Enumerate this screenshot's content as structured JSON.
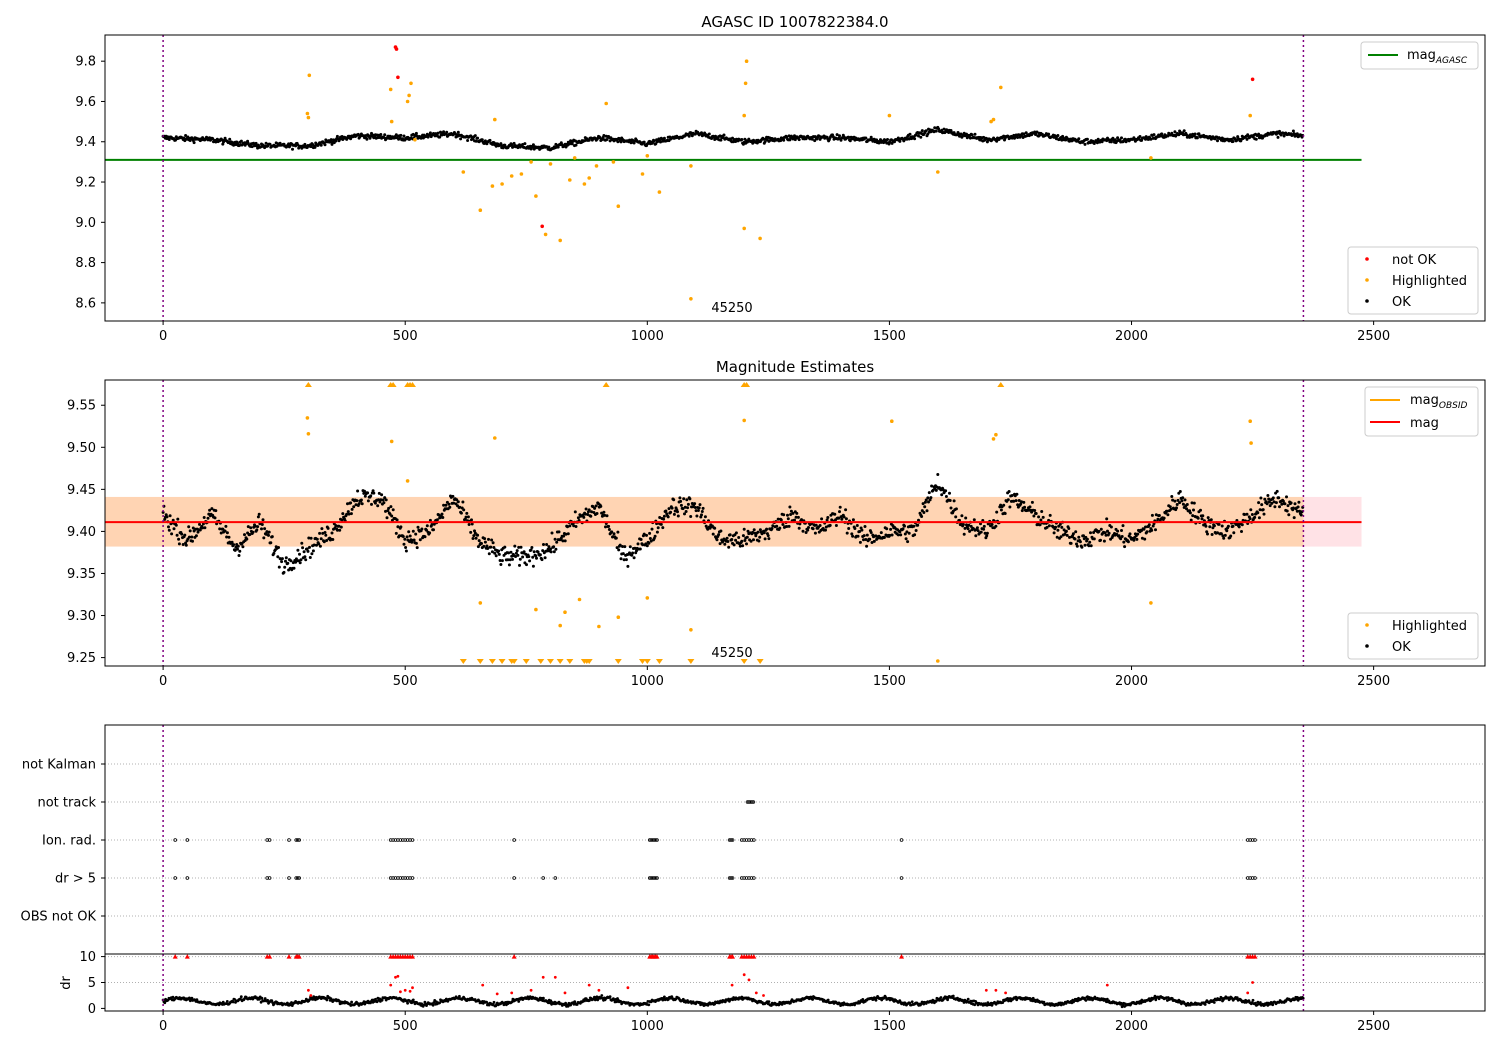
{
  "chart_data": [
    {
      "type": "scatter",
      "title": "AGASC ID 1007822384.0",
      "xlim": [
        -120,
        2730
      ],
      "ylim": [
        8.51,
        9.93
      ],
      "x_ticks": [
        0,
        500,
        1000,
        1500,
        2000,
        2500
      ],
      "y_ticks": [
        8.6,
        8.8,
        9.0,
        9.2,
        9.4,
        9.6,
        9.8
      ],
      "y_tick_labels": [
        "8.6",
        "8.8",
        "9.0",
        "9.2",
        "9.4",
        "9.6",
        "9.8"
      ],
      "vlines": [
        0,
        2355
      ],
      "hline": {
        "y": 9.31,
        "x_range": [
          -120,
          2475
        ],
        "color": "#008000"
      },
      "obsid_label": {
        "text": "45250",
        "x": 1180,
        "y": 8.58
      },
      "colors": {
        "ok": "#000000",
        "highlighted": "#ffa500",
        "not_ok": "#ff0000"
      },
      "baseline": {
        "x_start": 0,
        "x_end": 2355,
        "anchors": [
          [
            0,
            9.42
          ],
          [
            100,
            9.41
          ],
          [
            200,
            9.38
          ],
          [
            300,
            9.38
          ],
          [
            400,
            9.43
          ],
          [
            500,
            9.42
          ],
          [
            600,
            9.44
          ],
          [
            700,
            9.38
          ],
          [
            800,
            9.37
          ],
          [
            900,
            9.42
          ],
          [
            1000,
            9.39
          ],
          [
            1100,
            9.44
          ],
          [
            1200,
            9.4
          ],
          [
            1300,
            9.42
          ],
          [
            1400,
            9.42
          ],
          [
            1500,
            9.4
          ],
          [
            1600,
            9.46
          ],
          [
            1700,
            9.41
          ],
          [
            1800,
            9.44
          ],
          [
            1900,
            9.4
          ],
          [
            2000,
            9.41
          ],
          [
            2100,
            9.44
          ],
          [
            2200,
            9.41
          ],
          [
            2300,
            9.44
          ],
          [
            2355,
            9.43
          ]
        ]
      },
      "series": [
        {
          "name": "not OK",
          "color": "#ff0000",
          "points": [
            [
              480,
              9.87
            ],
            [
              482,
              9.86
            ],
            [
              485,
              9.72
            ],
            [
              783,
              8.98
            ],
            [
              2250,
              9.71
            ]
          ]
        },
        {
          "name": "Highlighted",
          "color": "#ffa500",
          "points": [
            [
              298,
              9.54
            ],
            [
              300,
              9.52
            ],
            [
              302,
              9.73
            ],
            [
              470,
              9.66
            ],
            [
              472,
              9.5
            ],
            [
              505,
              9.6
            ],
            [
              508,
              9.63
            ],
            [
              512,
              9.69
            ],
            [
              520,
              9.41
            ],
            [
              620,
              9.25
            ],
            [
              655,
              9.06
            ],
            [
              680,
              9.18
            ],
            [
              685,
              9.51
            ],
            [
              700,
              9.19
            ],
            [
              720,
              9.23
            ],
            [
              740,
              9.24
            ],
            [
              760,
              9.3
            ],
            [
              770,
              9.13
            ],
            [
              790,
              8.94
            ],
            [
              800,
              9.29
            ],
            [
              820,
              8.91
            ],
            [
              840,
              9.21
            ],
            [
              850,
              9.32
            ],
            [
              870,
              9.19
            ],
            [
              880,
              9.22
            ],
            [
              895,
              9.28
            ],
            [
              915,
              9.59
            ],
            [
              930,
              9.3
            ],
            [
              940,
              9.08
            ],
            [
              990,
              9.24
            ],
            [
              1000,
              9.33
            ],
            [
              1025,
              9.15
            ],
            [
              1090,
              9.28
            ],
            [
              1090,
              8.62
            ],
            [
              1200,
              9.53
            ],
            [
              1203,
              9.69
            ],
            [
              1205,
              9.8
            ],
            [
              1200,
              8.97
            ],
            [
              1233,
              8.92
            ],
            [
              1500,
              9.53
            ],
            [
              1600,
              9.25
            ],
            [
              1710,
              9.5
            ],
            [
              1715,
              9.51
            ],
            [
              1730,
              9.67
            ],
            [
              2040,
              9.32
            ],
            [
              2245,
              9.53
            ]
          ]
        },
        {
          "name": "OK",
          "color": "#000000"
        }
      ],
      "legends": [
        {
          "position": "upper right",
          "entries": [
            {
              "label": "mag",
              "subscript": "AGASC",
              "color": "#008000",
              "kind": "line"
            }
          ]
        },
        {
          "position": "lower right",
          "entries": [
            {
              "label": "not OK",
              "color": "#ff0000",
              "kind": "dot"
            },
            {
              "label": "Highlighted",
              "color": "#ffa500",
              "kind": "dot"
            },
            {
              "label": "OK",
              "color": "#000000",
              "kind": "dot"
            }
          ]
        }
      ]
    },
    {
      "type": "scatter",
      "title": "Magnitude Estimates",
      "xlim": [
        -120,
        2730
      ],
      "ylim": [
        9.24,
        9.58
      ],
      "x_ticks": [
        0,
        500,
        1000,
        1500,
        2000,
        2500
      ],
      "y_ticks": [
        9.25,
        9.3,
        9.35,
        9.4,
        9.45,
        9.5,
        9.55
      ],
      "y_tick_labels": [
        "9.25",
        "9.30",
        "9.35",
        "9.40",
        "9.45",
        "9.50",
        "9.55"
      ],
      "vlines": [
        0,
        2355
      ],
      "hline": {
        "y": 9.411,
        "x_range": [
          -120,
          2475
        ],
        "color": "#ff0000"
      },
      "bands": [
        {
          "y0": 9.382,
          "y1": 9.441,
          "x_range": [
            -120,
            2475
          ],
          "color": "#ffb6c1",
          "opacity": 0.4
        },
        {
          "y0": 9.382,
          "y1": 9.441,
          "x_range": [
            -120,
            2355
          ],
          "color": "#ffa500",
          "opacity": 0.22
        }
      ],
      "obsid_label": {
        "text": "45250",
        "x": 1180,
        "y": 9.254
      },
      "baseline": {
        "x_start": 0,
        "x_end": 2355,
        "anchors": [
          [
            0,
            9.42
          ],
          [
            50,
            9.39
          ],
          [
            100,
            9.42
          ],
          [
            150,
            9.38
          ],
          [
            200,
            9.41
          ],
          [
            250,
            9.36
          ],
          [
            300,
            9.38
          ],
          [
            350,
            9.4
          ],
          [
            400,
            9.44
          ],
          [
            450,
            9.44
          ],
          [
            500,
            9.39
          ],
          [
            550,
            9.4
          ],
          [
            600,
            9.44
          ],
          [
            650,
            9.39
          ],
          [
            700,
            9.37
          ],
          [
            750,
            9.37
          ],
          [
            800,
            9.38
          ],
          [
            850,
            9.41
          ],
          [
            900,
            9.43
          ],
          [
            950,
            9.37
          ],
          [
            1000,
            9.39
          ],
          [
            1050,
            9.43
          ],
          [
            1100,
            9.43
          ],
          [
            1150,
            9.39
          ],
          [
            1200,
            9.39
          ],
          [
            1250,
            9.4
          ],
          [
            1300,
            9.42
          ],
          [
            1350,
            9.4
          ],
          [
            1400,
            9.42
          ],
          [
            1450,
            9.39
          ],
          [
            1500,
            9.4
          ],
          [
            1550,
            9.4
          ],
          [
            1600,
            9.46
          ],
          [
            1650,
            9.41
          ],
          [
            1700,
            9.4
          ],
          [
            1750,
            9.44
          ],
          [
            1800,
            9.42
          ],
          [
            1850,
            9.4
          ],
          [
            1900,
            9.39
          ],
          [
            1950,
            9.4
          ],
          [
            2000,
            9.39
          ],
          [
            2050,
            9.41
          ],
          [
            2100,
            9.44
          ],
          [
            2150,
            9.41
          ],
          [
            2200,
            9.4
          ],
          [
            2250,
            9.42
          ],
          [
            2300,
            9.44
          ],
          [
            2355,
            9.42
          ]
        ]
      },
      "series": [
        {
          "name": "Highlighted",
          "color": "#ffa500",
          "points": [
            [
              298,
              9.535
            ],
            [
              300,
              9.516
            ],
            [
              685,
              9.511
            ],
            [
              472,
              9.507
            ],
            [
              505,
              9.46
            ],
            [
              1505,
              9.531
            ],
            [
              1200,
              9.532
            ],
            [
              2245,
              9.531
            ],
            [
              2247,
              9.505
            ],
            [
              1715,
              9.51
            ],
            [
              1720,
              9.515
            ],
            [
              655,
              9.315
            ],
            [
              770,
              9.307
            ],
            [
              820,
              9.288
            ],
            [
              830,
              9.304
            ],
            [
              860,
              9.319
            ],
            [
              900,
              9.287
            ],
            [
              940,
              9.298
            ],
            [
              1000,
              9.321
            ],
            [
              1090,
              9.283
            ],
            [
              1600,
              9.246
            ],
            [
              2040,
              9.315
            ]
          ]
        },
        {
          "name": "OK",
          "color": "#000000"
        },
        {
          "name": "clipped_above",
          "color": "#ffa500",
          "x": [
            300,
            470,
            475,
            505,
            510,
            515,
            915,
            1200,
            1205,
            1730
          ]
        },
        {
          "name": "clipped_below",
          "color": "#ffa500",
          "x": [
            620,
            655,
            680,
            700,
            720,
            725,
            750,
            780,
            800,
            820,
            840,
            870,
            875,
            880,
            940,
            990,
            1000,
            1025,
            1090,
            1200,
            1233
          ]
        }
      ],
      "legends": [
        {
          "position": "upper right",
          "entries": [
            {
              "label": "mag",
              "subscript": "OBSID",
              "color": "#ffa500",
              "kind": "line"
            },
            {
              "label": "mag",
              "color": "#ff0000",
              "kind": "line"
            }
          ]
        },
        {
          "position": "lower right",
          "entries": [
            {
              "label": "Highlighted",
              "color": "#ffa500",
              "kind": "dot"
            },
            {
              "label": "OK",
              "color": "#000000",
              "kind": "dot"
            }
          ]
        }
      ]
    },
    {
      "type": "scatter",
      "title": "",
      "xlim": [
        -120,
        2730
      ],
      "vlines": [
        0,
        2355
      ],
      "categories": [
        "not Kalman",
        "not track",
        "Ion. rad.",
        "dr > 5",
        "OBS not OK"
      ],
      "flag_points": {
        "not track": [
          1207,
          1210,
          1213,
          1216,
          1219
        ],
        "Ion. rad.": [
          25,
          50,
          215,
          220,
          260,
          275,
          278,
          281,
          470,
          475,
          480,
          485,
          490,
          495,
          500,
          505,
          510,
          515,
          725,
          1005,
          1008,
          1011,
          1014,
          1017,
          1020,
          1170,
          1173,
          1176,
          1195,
          1200,
          1205,
          1210,
          1215,
          1220,
          1525,
          2240,
          2245,
          2250,
          2255
        ],
        "dr > 5": [
          25,
          50,
          215,
          220,
          260,
          275,
          278,
          281,
          470,
          475,
          480,
          485,
          490,
          495,
          500,
          505,
          510,
          515,
          725,
          785,
          810,
          1005,
          1008,
          1011,
          1014,
          1017,
          1020,
          1170,
          1173,
          1176,
          1195,
          1200,
          1205,
          1210,
          1215,
          1220,
          1525,
          2240,
          2245,
          2250,
          2255
        ]
      }
    },
    {
      "type": "scatter",
      "title": "",
      "ylabel": "dr",
      "xlim": [
        -120,
        2730
      ],
      "ylim": [
        -0.5,
        10.5
      ],
      "x_ticks": [
        0,
        500,
        1000,
        1500,
        2000,
        2500
      ],
      "y_ticks": [
        0,
        5,
        10
      ],
      "y_tick_labels": [
        "0",
        "5",
        "10"
      ],
      "vlines": [
        0,
        2355
      ],
      "series": [
        {
          "name": "dr > 5",
          "color": "#ff0000",
          "x_at_ceiling": [
            25,
            50,
            215,
            220,
            260,
            275,
            278,
            281,
            470,
            475,
            480,
            485,
            490,
            495,
            500,
            505,
            510,
            515,
            725,
            1005,
            1008,
            1011,
            1014,
            1017,
            1020,
            1170,
            1173,
            1176,
            1195,
            1200,
            1205,
            1210,
            1215,
            1220,
            1525,
            2240,
            2245,
            2250,
            2255
          ]
        },
        {
          "name": "dr highlighted",
          "color": "#ff0000",
          "points": [
            [
              300,
              3.5
            ],
            [
              305,
              2.5
            ],
            [
              470,
              4.5
            ],
            [
              480,
              6
            ],
            [
              485,
              6.2
            ],
            [
              490,
              3.2
            ],
            [
              500,
              3.5
            ],
            [
              510,
              3.3
            ],
            [
              515,
              4
            ],
            [
              660,
              4.5
            ],
            [
              690,
              2.8
            ],
            [
              720,
              3
            ],
            [
              760,
              3.5
            ],
            [
              785,
              6
            ],
            [
              810,
              6
            ],
            [
              830,
              3
            ],
            [
              880,
              4.5
            ],
            [
              900,
              3.5
            ],
            [
              960,
              4
            ],
            [
              1175,
              4.5
            ],
            [
              1200,
              6.5
            ],
            [
              1210,
              5.5
            ],
            [
              1225,
              3
            ],
            [
              1240,
              2.5
            ],
            [
              1700,
              3.5
            ],
            [
              1720,
              3.5
            ],
            [
              1740,
              3
            ],
            [
              1950,
              4.5
            ],
            [
              2240,
              3
            ],
            [
              2250,
              5
            ]
          ]
        },
        {
          "name": "dr",
          "color": "#000000",
          "mean": 1.4
        }
      ]
    }
  ]
}
